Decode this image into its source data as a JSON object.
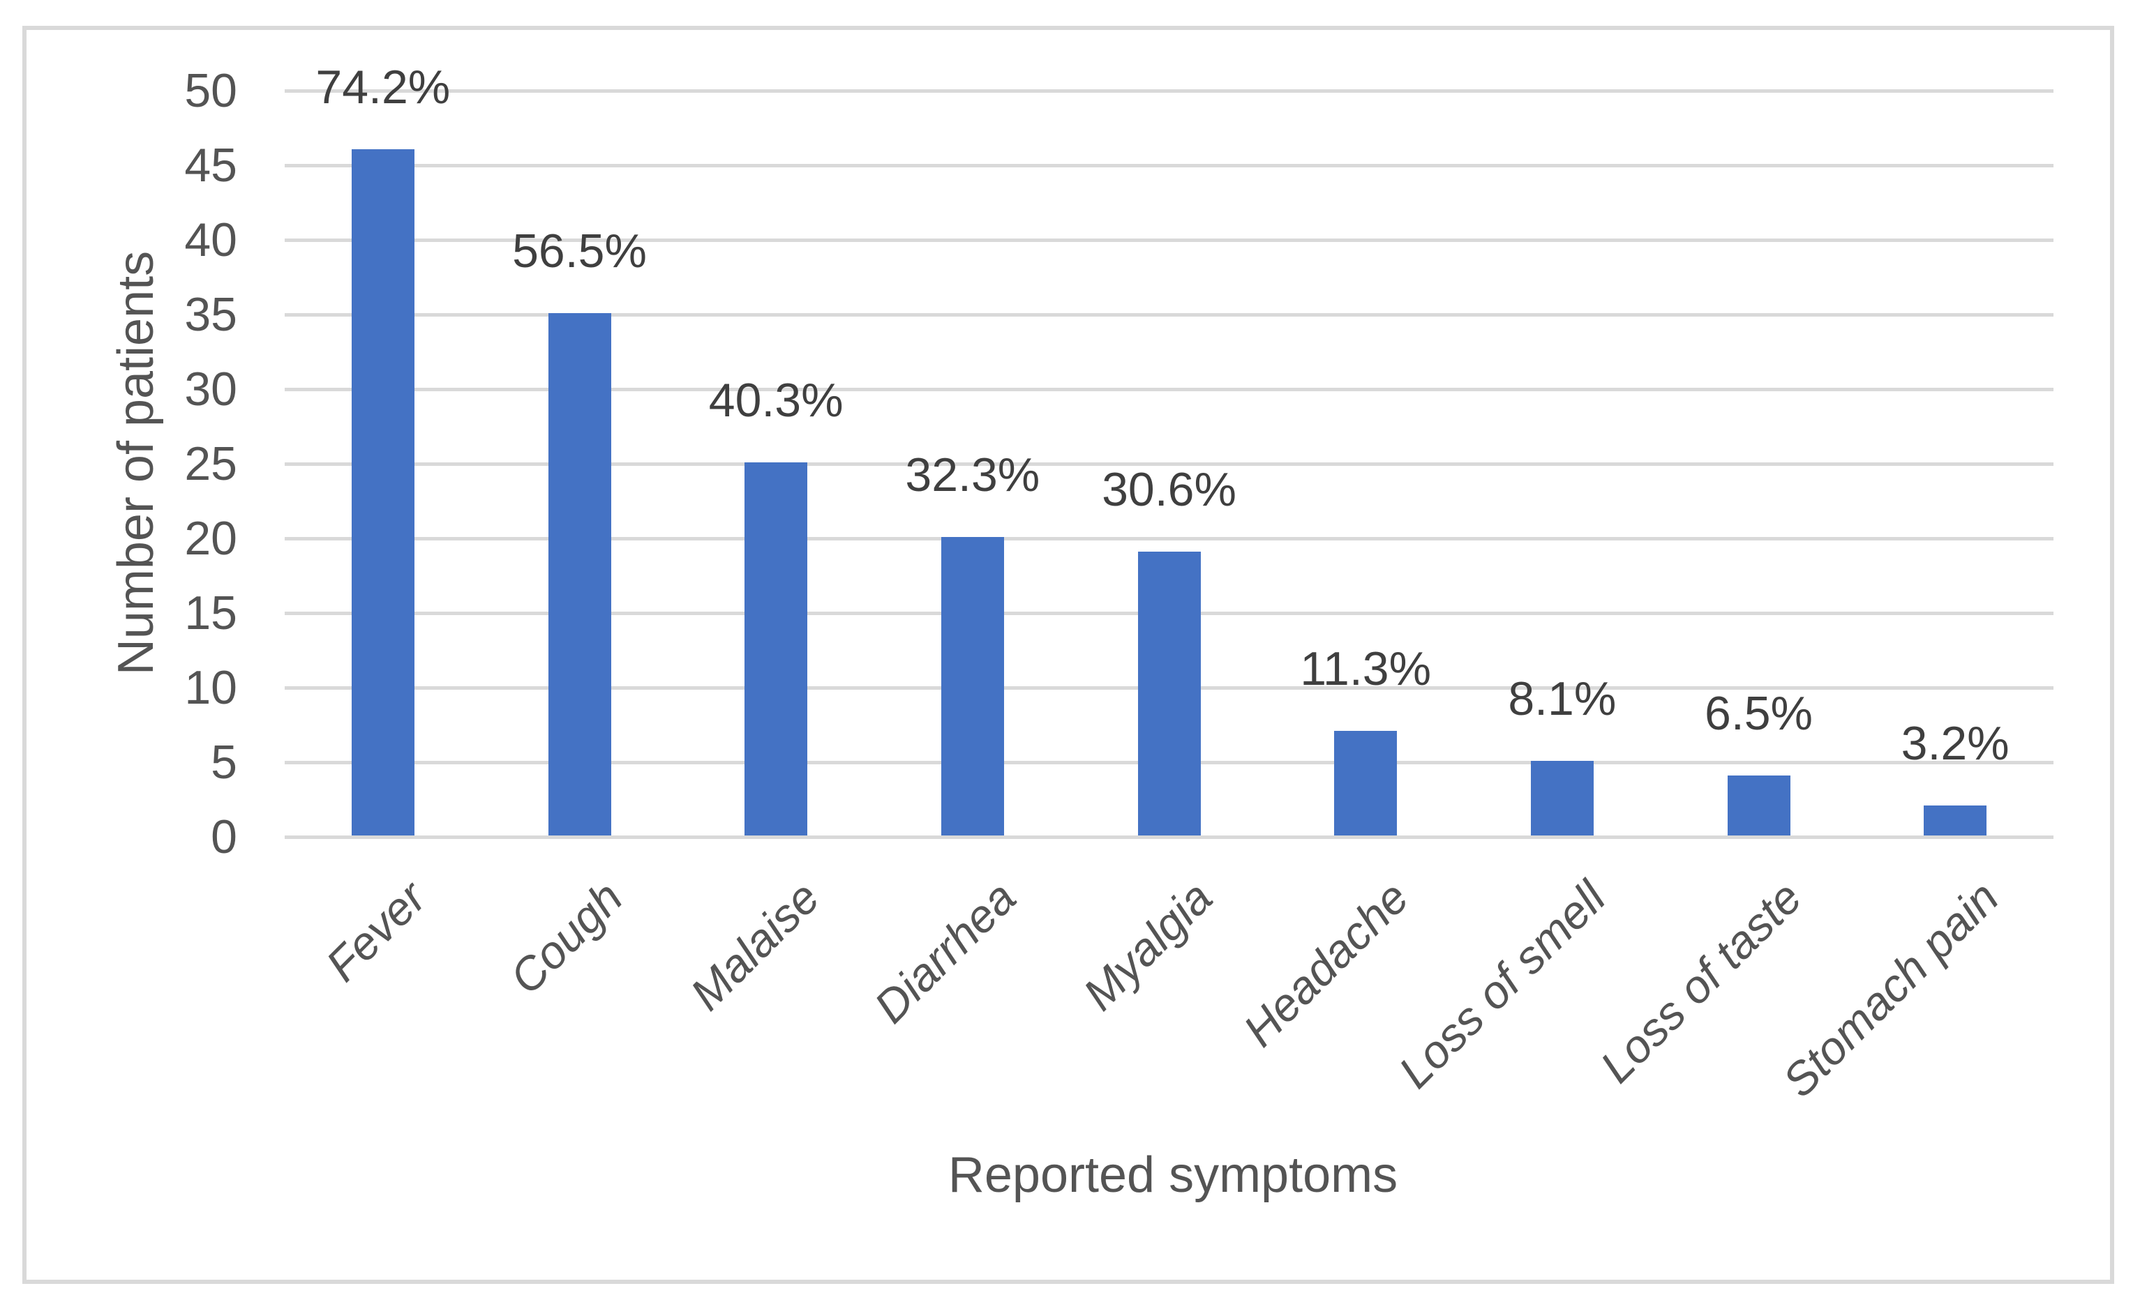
{
  "chart_data": {
    "type": "bar",
    "title": "",
    "xlabel": "Reported symptoms",
    "ylabel": "Number of patients",
    "categories": [
      "Fever",
      "Cough",
      "Malaise",
      "Diarrhea",
      "Myalgia",
      "Headache",
      "Loss of smell",
      "Loss of taste",
      "Stomach pain"
    ],
    "values": [
      46,
      35,
      25,
      20,
      19,
      7,
      5,
      4,
      2
    ],
    "bar_labels": [
      "74.2%",
      "56.5%",
      "40.3%",
      "32.3%",
      "30.6%",
      "11.3%",
      "8.1%",
      "6.5%",
      "3.2%"
    ],
    "ylim": [
      0,
      50
    ],
    "yticks": [
      0,
      5,
      10,
      15,
      20,
      25,
      30,
      35,
      40,
      45,
      50
    ],
    "grid": true,
    "legend": "none",
    "colors": {
      "bar": "#4472C4",
      "gridline": "#D9D9D9",
      "frame_border": "#D9D9D9",
      "axis_text": "#545454",
      "label_text": "#3F3F3F",
      "background": "#FFFFFF"
    }
  }
}
